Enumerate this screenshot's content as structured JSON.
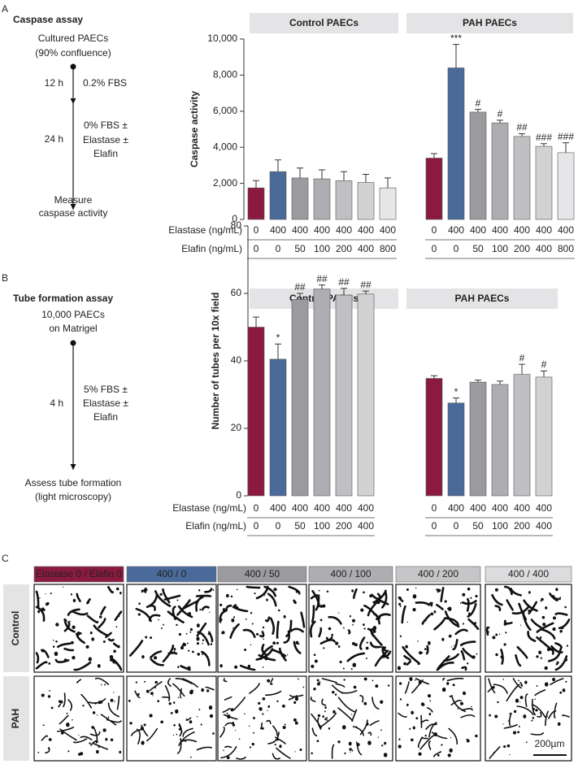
{
  "schematics": [
    {
      "label": "A",
      "title": "Caspase assay",
      "start": [
        "Cultured PAECs",
        "(90% confluence)"
      ],
      "steps": [
        {
          "time": "12 h",
          "condition": [
            "0.2% FBS"
          ]
        },
        {
          "time": "24 h",
          "condition": [
            "0% FBS ±",
            "Elastase ±",
            "Elafin"
          ]
        }
      ],
      "end": [
        "Measure",
        "caspase activity"
      ]
    },
    {
      "label": "B",
      "title": "Tube formation assay",
      "start": [
        "10,000 PAECs",
        "on Matrigel"
      ],
      "steps": [
        {
          "time": "4 h",
          "condition": [
            "5% FBS ±",
            "Elastase ±",
            "Elafin"
          ]
        }
      ],
      "end": [
        "Assess tube formation",
        "(light microscopy)"
      ]
    }
  ],
  "chart_data": [
    {
      "type": "bar",
      "y_label": "Caspase activity",
      "ylim": [
        0,
        10000
      ],
      "yticks": [
        0,
        {
          "value": 2000,
          "label": "2,000"
        },
        {
          "value": 4000,
          "label": "4,000"
        },
        {
          "value": 6000,
          "label": "6,000"
        },
        {
          "value": 8000,
          "label": "8,000"
        },
        {
          "value": 10000,
          "label": "10,000"
        }
      ],
      "row_labels": [
        "Elastase (ng/mL)",
        "Elafin (ng/mL)"
      ],
      "colors": [
        "#8b1a3f",
        "#4a6a9a",
        "#9b9b9f",
        "#aeaeb2",
        "#c0c0c3",
        "#d2d2d4",
        "#e6e6e8"
      ],
      "groups": [
        {
          "name": "Control PAECs",
          "elastase": [
            0,
            400,
            400,
            400,
            400,
            400,
            400
          ],
          "elafin": [
            0,
            0,
            50,
            100,
            200,
            400,
            800
          ],
          "values": [
            1750,
            2650,
            2300,
            2250,
            2150,
            2050,
            1750
          ],
          "errors": [
            400,
            650,
            550,
            500,
            500,
            450,
            550
          ],
          "annotations": [
            null,
            null,
            null,
            null,
            null,
            null,
            null
          ]
        },
        {
          "name": "PAH PAECs",
          "elastase": [
            0,
            400,
            400,
            400,
            400,
            400,
            400
          ],
          "elafin": [
            0,
            0,
            50,
            100,
            200,
            400,
            800
          ],
          "values": [
            3400,
            8400,
            5950,
            5350,
            4600,
            4050,
            3700
          ],
          "errors": [
            250,
            1300,
            150,
            150,
            150,
            150,
            550
          ],
          "annotations": [
            null,
            "***",
            "#",
            "#",
            "##",
            "###",
            "###"
          ]
        }
      ]
    },
    {
      "type": "bar",
      "y_label": "Number of tubes per 10x field",
      "ylim": [
        0,
        80
      ],
      "yticks": [
        0,
        20,
        40,
        60,
        80
      ],
      "row_labels": [
        "Elastase (ng/mL)",
        "Elafin (ng/mL)"
      ],
      "colors": [
        "#8b1a3f",
        "#4a6a9a",
        "#9b9b9f",
        "#aeaeb2",
        "#c0c0c3",
        "#d2d2d4"
      ],
      "groups": [
        {
          "name": "Control PAECs",
          "elastase": [
            0,
            400,
            400,
            400,
            400,
            400
          ],
          "elafin": [
            0,
            0,
            50,
            100,
            200,
            400
          ],
          "values": [
            50,
            40.5,
            58.2,
            61.3,
            59.5,
            59.8
          ],
          "errors": [
            3,
            4.5,
            1.8,
            1.2,
            2,
            0.9
          ],
          "annotations": [
            null,
            "*",
            "##",
            "##",
            "##",
            "##"
          ]
        },
        {
          "name": "PAH PAECs",
          "elastase": [
            0,
            400,
            400,
            400,
            400,
            400
          ],
          "elafin": [
            0,
            0,
            50,
            100,
            200,
            400
          ],
          "values": [
            34.8,
            27.5,
            33.7,
            33,
            36,
            35.2
          ],
          "errors": [
            0.8,
            1.5,
            0.6,
            1,
            3,
            1.8
          ],
          "annotations": [
            null,
            "*",
            null,
            null,
            "#",
            "#"
          ]
        }
      ]
    }
  ],
  "micrographs": {
    "label": "C",
    "columns": [
      "Elastase 0 / Elafin 0",
      "400 / 0",
      "400 / 50",
      "400 / 100",
      "400 / 200",
      "400 / 400"
    ],
    "header_colors": [
      "#8b1a3f",
      "#4a6a9a",
      "#9b9b9f",
      "#aeaeb2",
      "#c6c6c8",
      "#dcdcde"
    ],
    "rows": [
      "Control",
      "PAH"
    ],
    "scale_bar": "200µm"
  }
}
